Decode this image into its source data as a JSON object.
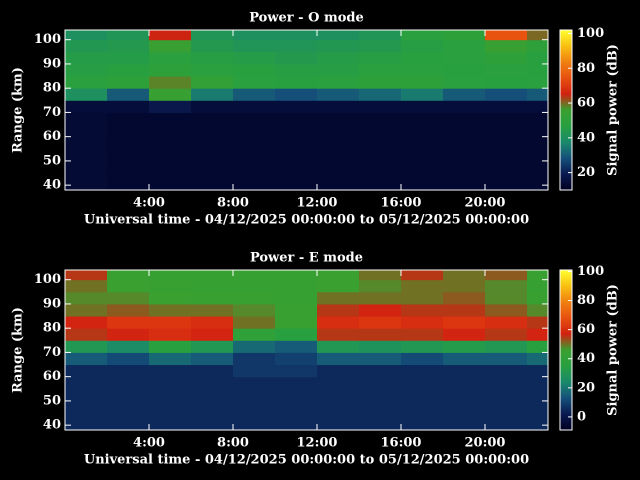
{
  "chart_data": [
    {
      "type": "heatmap",
      "title": "Power - O mode",
      "xlabel": "Universal time - 04/12/2025 00:00:00 to 05/12/2025 00:00:00",
      "ylabel": "Range (km)",
      "colorbar_label": "Signal power (dB)",
      "xlim": [
        0,
        23
      ],
      "ylim": [
        38,
        104
      ],
      "xticks": [
        {
          "value": 4,
          "label": "4:00"
        },
        {
          "value": 8,
          "label": "8:00"
        },
        {
          "value": 12,
          "label": "12:00"
        },
        {
          "value": 16,
          "label": "16:00"
        },
        {
          "value": 20,
          "label": "20:00"
        }
      ],
      "yticks": [
        40,
        50,
        60,
        70,
        80,
        90,
        100
      ],
      "clim": [
        10,
        102
      ],
      "cticks": [
        20,
        40,
        60,
        80,
        100
      ],
      "colorscale": [
        "#000020",
        "#0a1a50",
        "#15507a",
        "#1a8a6a",
        "#28a040",
        "#3aa030",
        "#d02010",
        "#e85010",
        "#f08010",
        "#f8c010",
        "#ffff30"
      ],
      "x_bins": [
        0,
        2,
        4,
        6,
        8,
        10,
        12,
        14,
        16,
        18,
        20,
        22,
        23
      ],
      "y_bins": [
        38,
        45,
        50,
        55,
        60,
        65,
        70,
        75,
        80,
        85,
        90,
        95,
        100,
        104
      ],
      "values": [
        [
          14,
          13,
          13,
          13,
          13,
          13,
          13,
          13,
          13,
          13,
          13,
          13
        ],
        [
          14,
          13,
          13,
          13,
          13,
          13,
          13,
          13,
          13,
          13,
          13,
          13
        ],
        [
          14,
          13,
          13,
          13,
          13,
          13,
          13,
          13,
          13,
          13,
          13,
          13
        ],
        [
          14,
          13,
          13,
          13,
          13,
          13,
          13,
          13,
          13,
          13,
          13,
          13
        ],
        [
          14,
          13,
          13,
          13,
          13,
          13,
          13,
          13,
          13,
          13,
          13,
          13
        ],
        [
          14,
          13,
          13,
          13,
          13,
          13,
          13,
          13,
          13,
          13,
          13,
          13
        ],
        [
          15,
          15,
          18,
          15,
          15,
          15,
          15,
          15,
          15,
          15,
          15,
          15
        ],
        [
          40,
          30,
          55,
          35,
          30,
          28,
          30,
          32,
          35,
          30,
          28,
          30
        ],
        [
          48,
          50,
          58,
          52,
          48,
          47,
          48,
          50,
          50,
          48,
          47,
          48
        ],
        [
          46,
          47,
          50,
          48,
          47,
          46,
          46,
          48,
          48,
          47,
          48,
          47
        ],
        [
          45,
          45,
          48,
          46,
          45,
          44,
          45,
          46,
          47,
          48,
          50,
          47
        ],
        [
          43,
          44,
          55,
          44,
          42,
          42,
          43,
          44,
          46,
          48,
          55,
          50
        ],
        [
          40,
          42,
          65,
          42,
          40,
          40,
          40,
          42,
          48,
          50,
          75,
          60
        ]
      ]
    },
    {
      "type": "heatmap",
      "title": "Power - E mode",
      "xlabel": "Universal time - 04/12/2025 00:00:00 to 05/12/2025 00:00:00",
      "ylabel": "Range (km)",
      "colorbar_label": "Signal power (dB)",
      "xlim": [
        0,
        23
      ],
      "ylim": [
        38,
        104
      ],
      "xticks": [
        {
          "value": 4,
          "label": "4:00"
        },
        {
          "value": 8,
          "label": "8:00"
        },
        {
          "value": 12,
          "label": "12:00"
        },
        {
          "value": 16,
          "label": "16:00"
        },
        {
          "value": 20,
          "label": "20:00"
        }
      ],
      "yticks": [
        40,
        50,
        60,
        70,
        80,
        90,
        100
      ],
      "clim": [
        -9,
        101
      ],
      "cticks": [
        0,
        20,
        40,
        60,
        80,
        100
      ],
      "colorscale": [
        "#000020",
        "#0a1a50",
        "#15507a",
        "#1a8a6a",
        "#28a040",
        "#3aa030",
        "#d02010",
        "#e85010",
        "#f08010",
        "#f8c010",
        "#ffff30"
      ],
      "x_bins": [
        0,
        2,
        4,
        6,
        8,
        10,
        12,
        14,
        16,
        18,
        20,
        22,
        23
      ],
      "y_bins": [
        38,
        45,
        50,
        55,
        60,
        65,
        70,
        75,
        80,
        85,
        90,
        95,
        100,
        104
      ],
      "values": [
        [
          5,
          5,
          5,
          5,
          5,
          5,
          5,
          5,
          5,
          5,
          5,
          5
        ],
        [
          5,
          5,
          5,
          5,
          5,
          5,
          5,
          5,
          5,
          5,
          5,
          5
        ],
        [
          5,
          5,
          5,
          5,
          5,
          5,
          5,
          5,
          5,
          5,
          5,
          5
        ],
        [
          5,
          5,
          5,
          5,
          5,
          5,
          5,
          5,
          5,
          5,
          5,
          5
        ],
        [
          5,
          5,
          5,
          5,
          8,
          8,
          5,
          5,
          5,
          5,
          5,
          5
        ],
        [
          15,
          12,
          18,
          15,
          8,
          10,
          15,
          15,
          12,
          15,
          15,
          18
        ],
        [
          30,
          25,
          35,
          30,
          18,
          15,
          30,
          28,
          30,
          32,
          30,
          35
        ],
        [
          55,
          58,
          60,
          58,
          40,
          35,
          55,
          55,
          55,
          58,
          55,
          58
        ],
        [
          58,
          62,
          62,
          60,
          50,
          45,
          60,
          62,
          60,
          62,
          60,
          55
        ],
        [
          50,
          52,
          50,
          50,
          48,
          45,
          55,
          58,
          55,
          55,
          52,
          48
        ],
        [
          48,
          48,
          46,
          45,
          45,
          44,
          50,
          50,
          50,
          52,
          48,
          45
        ],
        [
          50,
          46,
          45,
          44,
          44,
          44,
          46,
          48,
          50,
          50,
          48,
          44
        ],
        [
          55,
          45,
          44,
          44,
          44,
          44,
          46,
          50,
          55,
          50,
          52,
          45
        ]
      ]
    }
  ]
}
